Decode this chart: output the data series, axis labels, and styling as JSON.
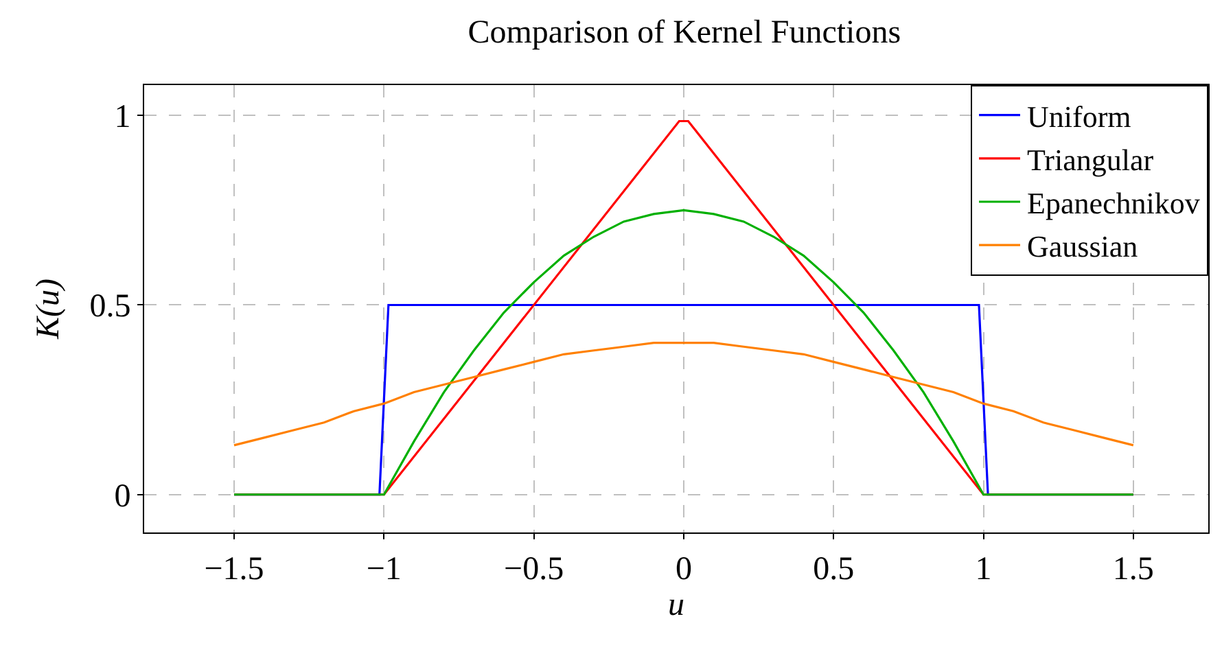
{
  "chart_data": {
    "type": "line",
    "title": "Comparison of Kernel Functions",
    "xlabel": "u",
    "ylabel": "K(u)",
    "xlim": [
      -1.8,
      1.75
    ],
    "ylim": [
      -0.1,
      1.08
    ],
    "xticks": [
      {
        "value": -1.5,
        "label": "−1.5"
      },
      {
        "value": -1,
        "label": "−1"
      },
      {
        "value": -0.5,
        "label": "−0.5"
      },
      0,
      0.5,
      1,
      1.5
    ],
    "yticks": [
      0,
      0.5,
      1
    ],
    "grid": true,
    "legend": "top right",
    "marker": "none",
    "line_style": "solid",
    "series": [
      {
        "name": "Uniform",
        "color": "#0000ff",
        "x": [
          -1.5,
          -1.015,
          -0.985,
          0.985,
          1.015,
          1.5
        ],
        "values": [
          0,
          0,
          0.5,
          0.5,
          0,
          0
        ]
      },
      {
        "name": "Triangular",
        "color": "#ff0000",
        "x": [
          -1.5,
          -1.0,
          -0.015,
          0.015,
          1.0,
          1.5
        ],
        "values": [
          0,
          0,
          0.985,
          0.985,
          0,
          0
        ]
      },
      {
        "name": "Epanechnikov",
        "color": "#00b000",
        "x": [
          -1.5,
          -1.0,
          -0.9,
          -0.8,
          -0.7,
          -0.6,
          -0.5,
          -0.4,
          -0.3,
          -0.2,
          -0.1,
          0,
          0.1,
          0.2,
          0.3,
          0.4,
          0.5,
          0.6,
          0.7,
          0.8,
          0.9,
          1.0,
          1.5
        ],
        "values": [
          0,
          0,
          0.14,
          0.27,
          0.38,
          0.48,
          0.56,
          0.63,
          0.68,
          0.72,
          0.74,
          0.75,
          0.74,
          0.72,
          0.68,
          0.63,
          0.56,
          0.48,
          0.38,
          0.27,
          0.14,
          0,
          0
        ]
      },
      {
        "name": "Gaussian",
        "color": "#ff8000",
        "x": [
          -1.5,
          -1.4,
          -1.3,
          -1.2,
          -1.1,
          -1.0,
          -0.9,
          -0.8,
          -0.7,
          -0.6,
          -0.5,
          -0.4,
          -0.3,
          -0.2,
          -0.1,
          0,
          0.1,
          0.2,
          0.3,
          0.4,
          0.5,
          0.6,
          0.7,
          0.8,
          0.9,
          1.0,
          1.1,
          1.2,
          1.3,
          1.4,
          1.5
        ],
        "values": [
          0.13,
          0.15,
          0.17,
          0.19,
          0.22,
          0.24,
          0.27,
          0.29,
          0.31,
          0.33,
          0.35,
          0.37,
          0.38,
          0.39,
          0.4,
          0.4,
          0.4,
          0.39,
          0.38,
          0.37,
          0.35,
          0.33,
          0.31,
          0.29,
          0.27,
          0.24,
          0.22,
          0.19,
          0.17,
          0.15,
          0.13
        ]
      }
    ]
  }
}
